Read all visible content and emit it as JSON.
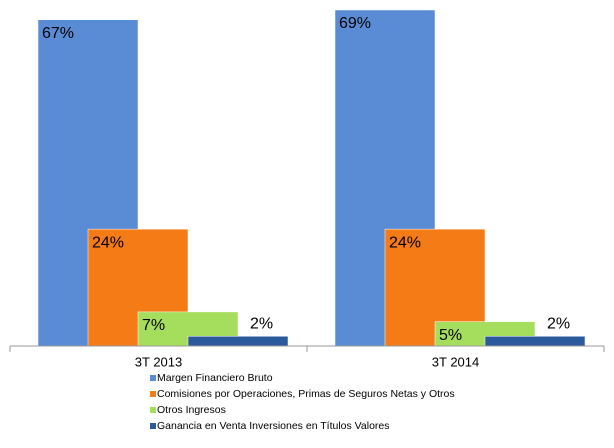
{
  "chart_data": {
    "type": "bar",
    "categories": [
      "3T 2013",
      "3T 2014"
    ],
    "series": [
      {
        "name": "Margen Financiero Bruto",
        "color": "#5a8cd6",
        "values": [
          67,
          69
        ],
        "value_labels": [
          "67%",
          "69%"
        ]
      },
      {
        "name": "Comisiones por Operaciones, Primas de Seguros Netas y Otros",
        "color": "#f47b16",
        "values": [
          24,
          24
        ],
        "value_labels": [
          "24%",
          "24%"
        ]
      },
      {
        "name": "Otros Ingresos",
        "color": "#a5dd5c",
        "values": [
          7,
          5
        ],
        "value_labels": [
          "7%",
          "5%"
        ]
      },
      {
        "name": "Ganancia en Venta Inversiones en Títulos Valores",
        "color": "#2b5a9c",
        "values": [
          2,
          2
        ],
        "value_labels": [
          "2%",
          "2%"
        ]
      }
    ]
  }
}
